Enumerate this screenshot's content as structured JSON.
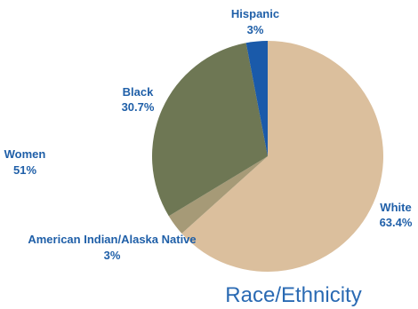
{
  "chart_data": {
    "type": "pie",
    "title": "Race/Ethnicity",
    "slices": [
      {
        "name": "White",
        "value": 63.4,
        "label": "63.4%",
        "color": "#dbbf9d"
      },
      {
        "name": "American Indian/Alaska Native",
        "value": 3,
        "label": "3%",
        "color": "#a69a77"
      },
      {
        "name": "Black",
        "value": 30.7,
        "label": "30.7%",
        "color": "#6e7754"
      },
      {
        "name": "Hispanic",
        "value": 3,
        "label": "3%",
        "color": "#1a5aaa"
      }
    ],
    "annotations": [
      {
        "name": "Women",
        "label": "51%"
      }
    ]
  }
}
